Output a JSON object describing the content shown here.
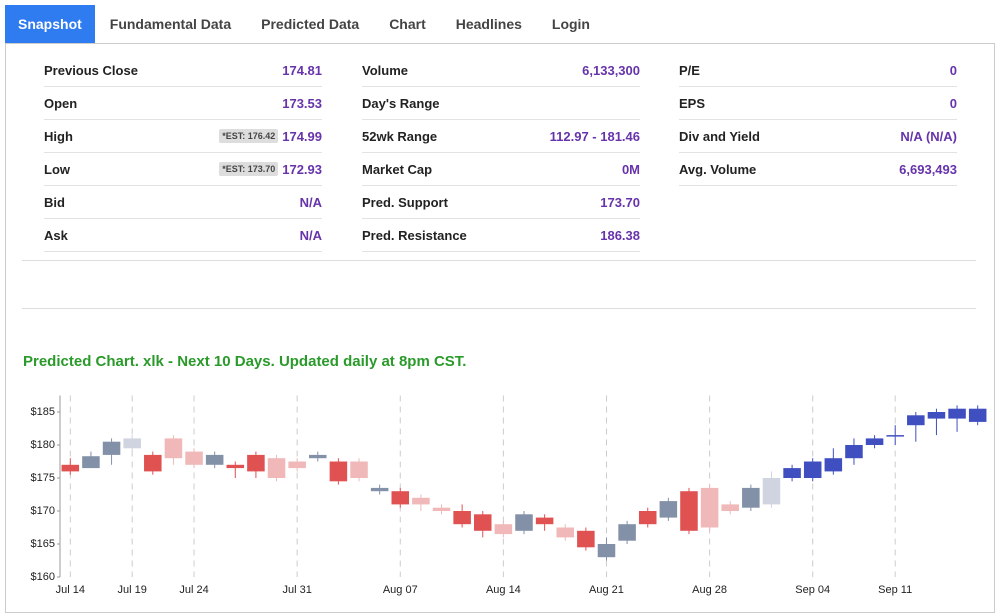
{
  "tabs": [
    "Snapshot",
    "Fundamental Data",
    "Predicted Data",
    "Chart",
    "Headlines",
    "Login"
  ],
  "stats": [
    [
      {
        "label": "Previous Close",
        "value": "174.81"
      },
      {
        "label": "Open",
        "value": "173.53"
      },
      {
        "label": "High",
        "est": "*EST: 176.42",
        "value": "174.99"
      },
      {
        "label": "Low",
        "est": "*EST: 173.70",
        "value": "172.93"
      },
      {
        "label": "Bid",
        "value": "N/A"
      },
      {
        "label": "Ask",
        "value": "N/A"
      }
    ],
    [
      {
        "label": "Volume",
        "value": "6,133,300"
      },
      {
        "label": "Day's Range",
        "value": ""
      },
      {
        "label": "52wk Range",
        "value": "112.97 - 181.46"
      },
      {
        "label": "Market Cap",
        "value": "0M"
      },
      {
        "label": "Pred. Support",
        "value": "173.70"
      },
      {
        "label": "Pred. Resistance",
        "value": "186.38"
      }
    ],
    [
      {
        "label": "P/E",
        "value": "0"
      },
      {
        "label": "EPS",
        "value": "0"
      },
      {
        "label": "Div and Yield",
        "value": "N/A (N/A)"
      },
      {
        "label": "Avg. Volume",
        "value": "6,693,493"
      }
    ]
  ],
  "chart_data": {
    "type": "candlestick",
    "title": "Predicted Chart. xlk - Next 10 Days. Updated daily at 8pm CST.",
    "x": [
      0,
      1,
      2,
      3,
      4,
      5,
      6,
      7,
      8,
      9,
      10,
      11,
      12,
      13,
      14,
      15,
      16,
      17,
      18,
      19,
      20,
      21,
      22,
      23,
      24,
      25,
      26,
      27,
      28,
      29,
      30,
      31,
      32,
      33,
      34,
      35,
      36,
      37,
      38,
      39,
      40,
      41,
      42,
      43,
      44
    ],
    "open": [
      177,
      176.5,
      178.5,
      179.5,
      178.5,
      181,
      179,
      177,
      177,
      178.5,
      178,
      177.5,
      178,
      177.5,
      177.5,
      173.5,
      173,
      172,
      170.5,
      170,
      169.5,
      168,
      167,
      169,
      167.5,
      167,
      163,
      165.5,
      168,
      169,
      173,
      173.5,
      171,
      170.5,
      171,
      175,
      175,
      176,
      178,
      180,
      181.5,
      183,
      184,
      184,
      183.5
    ],
    "high": [
      178,
      179,
      181,
      181.5,
      179,
      181.5,
      179.5,
      179,
      177.5,
      179,
      178.5,
      178,
      179,
      178,
      178,
      174,
      173.5,
      172.5,
      171,
      171,
      170,
      168.5,
      170,
      169.5,
      168,
      167.5,
      166,
      168.5,
      170.5,
      172,
      173.5,
      174,
      171.5,
      174,
      176,
      177,
      178,
      179.5,
      181,
      181.5,
      183,
      185,
      185.5,
      186,
      186
    ],
    "low": [
      175.5,
      176.5,
      177,
      179,
      175.5,
      177,
      176.5,
      176.5,
      175,
      175,
      174.5,
      176,
      177.5,
      174,
      174.5,
      172.5,
      170.5,
      170,
      169.5,
      167.5,
      166,
      166,
      166.5,
      167,
      165.5,
      164,
      162.5,
      165,
      167.5,
      168.5,
      166.5,
      167,
      169.5,
      170,
      170.5,
      174.5,
      174.5,
      175.5,
      177,
      179.5,
      180,
      180.5,
      181.5,
      182,
      183
    ],
    "close": [
      176,
      178.3,
      180.5,
      181,
      176,
      178,
      177,
      178.5,
      176.5,
      176,
      175,
      176.5,
      178.5,
      174.5,
      175,
      173,
      171,
      171,
      170,
      168,
      167,
      166.5,
      169.5,
      168,
      166,
      164.5,
      165,
      168,
      170,
      171.5,
      167,
      167.5,
      170,
      173.5,
      175,
      176.5,
      177.5,
      178,
      180,
      181,
      181.5,
      184.5,
      185,
      185.5,
      185.5
    ],
    "colors": [
      "#e05252",
      "#8290a8",
      "#8290a8",
      "#d0d4e0",
      "#e05252",
      "#f0b8b8",
      "#f0b8b8",
      "#8290a8",
      "#e05252",
      "#e05252",
      "#f0b8b8",
      "#f0b8b8",
      "#8290a8",
      "#e05252",
      "#f0b8b8",
      "#8290a8",
      "#e05252",
      "#f0b8b8",
      "#f0b8b8",
      "#e05252",
      "#e05252",
      "#f0b8b8",
      "#8290a8",
      "#e05252",
      "#f0b8b8",
      "#e05252",
      "#8290a8",
      "#8290a8",
      "#e05252",
      "#8290a8",
      "#e05252",
      "#f0b8b8",
      "#f0b8b8",
      "#8290a8",
      "#d0d4e0",
      "#3f4fbf",
      "#3f4fbf",
      "#3f4fbf",
      "#3f4fbf",
      "#3f4fbf",
      "#3f4fbf",
      "#3f4fbf",
      "#3f4fbf",
      "#3f4fbf",
      "#3f4fbf"
    ],
    "xlim": [
      -0.5,
      44.5
    ],
    "xticks": [
      {
        "value": 0,
        "label": "Jul 14"
      },
      {
        "value": 3,
        "label": "Jul 19"
      },
      {
        "value": 6,
        "label": "Jul 24"
      },
      {
        "value": 11,
        "label": "Jul 31"
      },
      {
        "value": 16,
        "label": "Aug 07"
      },
      {
        "value": 21,
        "label": "Aug 14"
      },
      {
        "value": 26,
        "label": "Aug 21"
      },
      {
        "value": 31,
        "label": "Aug 28"
      },
      {
        "value": 36,
        "label": "Sep 04"
      },
      {
        "value": 40,
        "label": "Sep 11"
      }
    ],
    "ylim": [
      160,
      187.5
    ],
    "yticks": [
      {
        "value": 160,
        "label": "$160"
      },
      {
        "value": 165,
        "label": "$165"
      },
      {
        "value": 170,
        "label": "$170"
      },
      {
        "value": 175,
        "label": "$175"
      },
      {
        "value": 180,
        "label": "$180"
      },
      {
        "value": 185,
        "label": "$185"
      }
    ]
  }
}
